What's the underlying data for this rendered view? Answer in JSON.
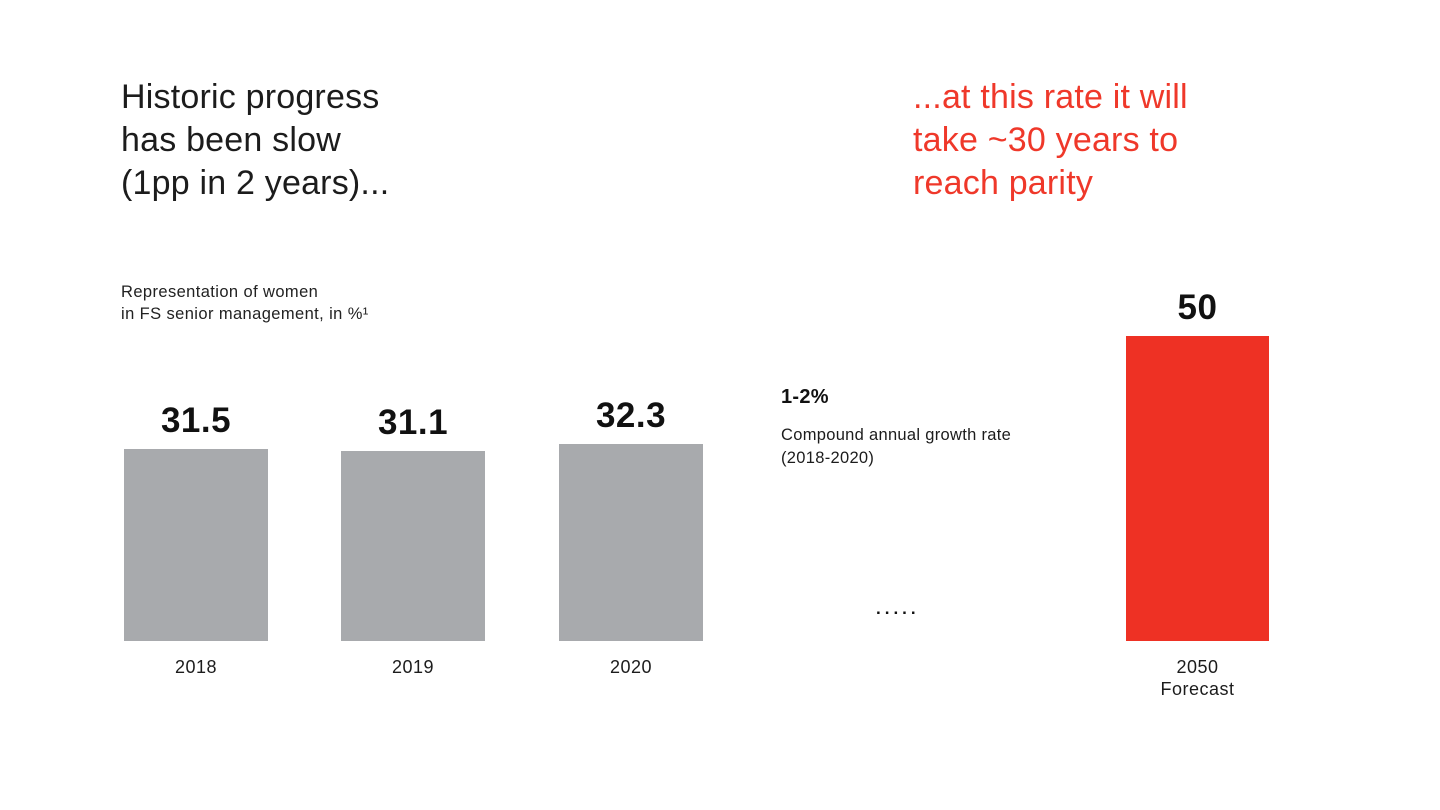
{
  "slide": {
    "heading_left": "Historic progress\nhas been slow\n(1pp in 2 years)...",
    "heading_right": "...at this rate it will\ntake ~30 years to\nreach parity"
  },
  "chart_data": {
    "type": "bar",
    "title": "Representation of women\nin FS senior management, in %¹",
    "categories": [
      "2018",
      "2019",
      "2020",
      "2050\nForecast"
    ],
    "values": [
      31.5,
      31.1,
      32.3,
      50
    ],
    "value_labels": [
      "31.5",
      "31.1",
      "32.3",
      "50"
    ],
    "bar_colors": [
      "#a8aaad",
      "#a8aaad",
      "#a8aaad",
      "#ee3124"
    ],
    "ylim": [
      0,
      50
    ],
    "grid": false,
    "legend": "none",
    "annotation": {
      "value": "1-2%",
      "label": "Compound annual growth rate\n(2018-2020)"
    },
    "ellipsis": "....."
  },
  "colors": {
    "bar_gray": "#a8aaad",
    "accent_red": "#ee3124",
    "heading_red": "#ef382a",
    "text_dark": "#1c1c1c"
  }
}
